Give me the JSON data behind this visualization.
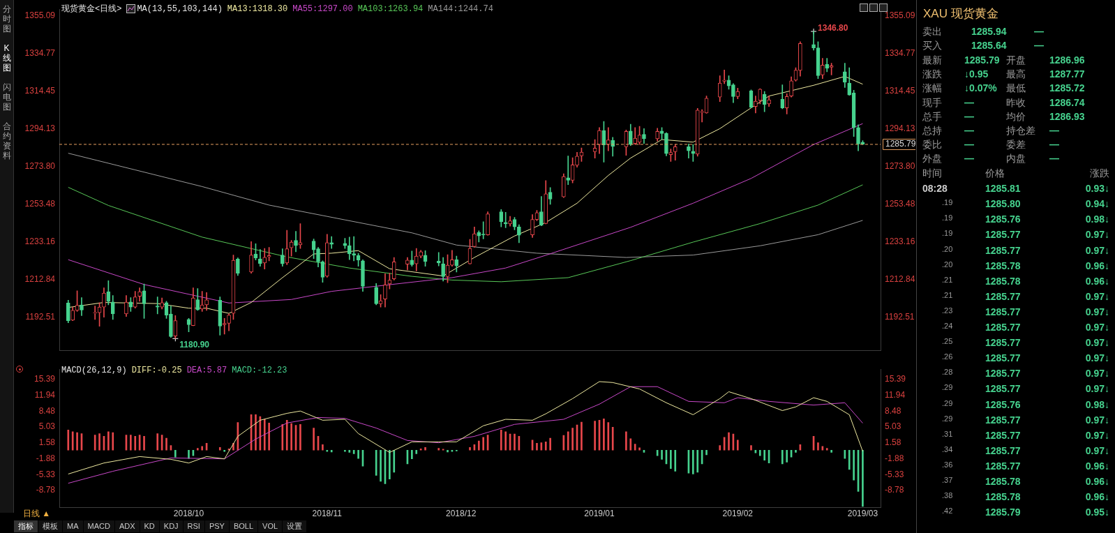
{
  "chart_data": [
    {
      "type": "candlestick",
      "title": "现货黄金<日线>",
      "legend_title": "MA(13,55,103,144)",
      "legend": "top",
      "tick_labels": "y",
      "x": [
        "2018-09-04",
        "2018-09-05",
        "2018-09-06",
        "2018-09-07",
        "2018-09-10",
        "2018-09-11",
        "2018-09-12",
        "2018-09-13",
        "2018-09-14",
        "2018-09-17",
        "2018-09-18",
        "2018-09-19",
        "2018-09-20",
        "2018-09-21",
        "2018-09-24",
        "2018-09-25",
        "2018-09-26",
        "2018-09-27",
        "2018-09-28",
        "2018-10-01",
        "2018-10-02",
        "2018-10-03",
        "2018-10-04",
        "2018-10-05",
        "2018-10-08",
        "2018-10-09",
        "2018-10-10",
        "2018-10-11",
        "2018-10-12",
        "2018-10-15",
        "2018-10-16",
        "2018-10-17",
        "2018-10-18",
        "2018-10-19",
        "2018-10-22",
        "2018-10-23",
        "2018-10-24",
        "2018-10-25",
        "2018-10-26",
        "2018-10-29",
        "2018-10-30",
        "2018-10-31",
        "2018-11-01",
        "2018-11-02",
        "2018-11-05",
        "2018-11-06",
        "2018-11-07",
        "2018-11-08",
        "2018-11-09",
        "2018-11-12",
        "2018-11-13",
        "2018-11-14",
        "2018-11-15",
        "2018-11-16",
        "2018-11-19",
        "2018-11-20",
        "2018-11-21",
        "2018-11-22",
        "2018-11-23",
        "2018-11-26",
        "2018-11-27",
        "2018-11-28",
        "2018-11-29",
        "2018-11-30",
        "2018-12-03",
        "2018-12-04",
        "2018-12-05",
        "2018-12-06",
        "2018-12-07",
        "2018-12-10",
        "2018-12-11",
        "2018-12-12",
        "2018-12-13",
        "2018-12-14",
        "2018-12-17",
        "2018-12-18",
        "2018-12-19",
        "2018-12-20",
        "2018-12-21",
        "2018-12-24",
        "2018-12-25",
        "2018-12-26",
        "2018-12-27",
        "2018-12-28",
        "2018-12-31",
        "2019-01-01",
        "2019-01-02",
        "2019-01-03",
        "2019-01-04",
        "2019-01-07",
        "2019-01-08",
        "2019-01-09",
        "2019-01-10",
        "2019-01-11",
        "2019-01-14",
        "2019-01-15",
        "2019-01-16",
        "2019-01-17",
        "2019-01-18",
        "2019-01-21",
        "2019-01-22",
        "2019-01-23",
        "2019-01-24",
        "2019-01-25",
        "2019-01-28",
        "2019-01-29",
        "2019-01-30",
        "2019-01-31",
        "2019-02-01",
        "2019-02-04",
        "2019-02-05",
        "2019-02-06",
        "2019-02-07",
        "2019-02-08",
        "2019-02-11",
        "2019-02-12",
        "2019-02-13",
        "2019-02-14",
        "2019-02-15",
        "2019-02-18",
        "2019-02-19",
        "2019-02-20",
        "2019-02-21",
        "2019-02-22",
        "2019-02-25",
        "2019-02-26",
        "2019-02-27",
        "2019-02-28",
        "2019-03-01"
      ],
      "ohlc": [
        [
          1200.1,
          1201.6,
          1189.4,
          1190.6
        ],
        [
          1190.8,
          1197.9,
          1190.6,
          1196.1
        ],
        [
          1196.1,
          1206.7,
          1195.5,
          1198.9
        ],
        [
          1199.1,
          1203.0,
          1193.3,
          1196.3
        ],
        [
          1194.6,
          1198.5,
          1191.2,
          1194.9
        ],
        [
          1194.9,
          1200.3,
          1187.5,
          1197.9
        ],
        [
          1197.9,
          1208.3,
          1192.4,
          1205.5
        ],
        [
          1206.2,
          1212.2,
          1199.1,
          1201.0
        ],
        [
          1200.7,
          1204.2,
          1191.2,
          1194.2
        ],
        [
          1194.2,
          1204.2,
          1192.8,
          1200.6
        ],
        [
          1200.7,
          1203.0,
          1195.5,
          1197.9
        ],
        [
          1197.9,
          1206.4,
          1197.3,
          1203.4
        ],
        [
          1203.7,
          1208.3,
          1201.0,
          1206.2
        ],
        [
          1206.7,
          1210.4,
          1191.8,
          1199.7
        ],
        [
          1198.5,
          1203.4,
          1194.2,
          1197.9
        ],
        [
          1197.9,
          1202.8,
          1196.9,
          1200.3
        ],
        [
          1200.3,
          1201.0,
          1191.8,
          1193.6
        ],
        [
          1194.2,
          1198.5,
          1181.5,
          1182.0
        ],
        [
          1182.3,
          1193.3,
          1180.9,
          1190.6
        ],
        [
          1191.2,
          1191.8,
          1184.5,
          1188.4
        ],
        [
          1187.9,
          1208.3,
          1187.8,
          1202.8
        ],
        [
          1201.9,
          1207.9,
          1196.1,
          1196.4
        ],
        [
          1196.9,
          1206.4,
          1195.5,
          1199.1
        ],
        [
          1199.1,
          1205.8,
          1196.1,
          1201.8
        ],
        [
          1201.6,
          1203.4,
          1182.7,
          1187.6
        ],
        [
          1188.4,
          1191.8,
          1183.3,
          1189.1
        ],
        [
          1189.1,
          1194.3,
          1185.1,
          1193.6
        ],
        [
          1194.5,
          1226.0,
          1191.2,
          1223.2
        ],
        [
          1223.8,
          1224.5,
          1215.0,
          1216.2
        ],
        [
          1216.8,
          1233.3,
          1216.2,
          1226.0
        ],
        [
          1226.6,
          1232.1,
          1223.3,
          1224.4
        ],
        [
          1223.9,
          1229.0,
          1219.9,
          1221.5
        ],
        [
          1221.7,
          1229.6,
          1218.4,
          1224.8
        ],
        [
          1225.0,
          1230.2,
          1222.9,
          1225.7
        ],
        [
          1226.0,
          1229.4,
          1219.9,
          1221.3
        ],
        [
          1221.7,
          1239.4,
          1220.8,
          1229.4
        ],
        [
          1229.9,
          1233.9,
          1225.4,
          1233.0
        ],
        [
          1233.9,
          1238.8,
          1227.8,
          1231.2
        ],
        [
          1231.5,
          1243.0,
          1229.6,
          1232.7
        ],
        [
          1233.5,
          1234.7,
          1224.1,
          1228.8
        ],
        [
          1229.4,
          1230.2,
          1219.6,
          1222.3
        ],
        [
          1222.3,
          1222.9,
          1211.3,
          1214.0
        ],
        [
          1214.6,
          1237.2,
          1214.0,
          1232.7
        ],
        [
          1232.7,
          1236.0,
          1229.6,
          1231.8
        ],
        [
          1232.3,
          1235.1,
          1229.6,
          1231.1
        ],
        [
          1231.1,
          1235.7,
          1223.5,
          1226.6
        ],
        [
          1226.8,
          1236.0,
          1222.9,
          1225.9
        ],
        [
          1225.7,
          1226.9,
          1219.9,
          1223.3
        ],
        [
          1222.9,
          1223.5,
          1206.4,
          1209.1
        ],
        [
          1208.6,
          1210.7,
          1199.1,
          1199.7
        ],
        [
          1199.7,
          1204.6,
          1197.9,
          1201.3
        ],
        [
          1202.2,
          1215.9,
          1197.9,
          1209.9
        ],
        [
          1210.4,
          1216.2,
          1207.7,
          1212.4
        ],
        [
          1213.2,
          1224.7,
          1212.5,
          1222.3
        ],
        [
          1221.1,
          1224.7,
          1218.0,
          1223.3
        ],
        [
          1223.3,
          1228.2,
          1219.9,
          1220.8
        ],
        [
          1221.3,
          1229.6,
          1217.4,
          1225.4
        ],
        [
          1225.4,
          1228.6,
          1224.5,
          1227.8
        ],
        [
          1225.9,
          1228.4,
          1219.9,
          1222.5
        ],
        [
          1222.7,
          1227.4,
          1220.1,
          1221.7
        ],
        [
          1221.3,
          1224.7,
          1211.9,
          1214.4
        ],
        [
          1214.4,
          1226.2,
          1211.1,
          1220.5
        ],
        [
          1220.5,
          1228.6,
          1219.9,
          1223.5
        ],
        [
          1223.5,
          1225.4,
          1216.8,
          1220.1
        ],
        [
          1221.3,
          1234.5,
          1221.1,
          1229.6
        ],
        [
          1230.6,
          1241.2,
          1230.2,
          1237.5
        ],
        [
          1238.2,
          1239.1,
          1233.0,
          1236.3
        ],
        [
          1237.3,
          1244.0,
          1234.7,
          1236.9
        ],
        [
          1236.9,
          1249.4,
          1236.7,
          1248.2
        ],
        [
          1249.4,
          1250.6,
          1241.2,
          1244.0
        ],
        [
          1243.6,
          1249.1,
          1240.8,
          1242.8
        ],
        [
          1242.8,
          1246.9,
          1241.6,
          1244.5
        ],
        [
          1245.2,
          1246.4,
          1239.6,
          1241.2
        ],
        [
          1241.2,
          1242.4,
          1232.7,
          1236.7
        ],
        [
          1236.9,
          1247.9,
          1235.5,
          1245.2
        ],
        [
          1245.2,
          1250.1,
          1244.5,
          1248.9
        ],
        [
          1249.4,
          1257.7,
          1241.8,
          1242.1
        ],
        [
          1243.0,
          1266.2,
          1242.8,
          1259.1
        ],
        [
          1259.9,
          1262.5,
          1253.4,
          1256.2
        ],
        [
          1257.4,
          1269.9,
          1257.1,
          1268.4
        ],
        [
          1267.7,
          1279.5,
          1264.0,
          1266.4
        ],
        [
          1266.4,
          1278.6,
          1265.0,
          1274.7
        ],
        [
          1274.5,
          1281.5,
          1273.5,
          1279.4
        ],
        [
          1279.6,
          1283.9,
          1276.6,
          1281.6
        ],
        [
          1281.8,
          1288.4,
          1278.4,
          1283.8
        ],
        [
          1285.7,
          1294.9,
          1280.8,
          1293.3
        ],
        [
          1293.3,
          1298.2,
          1276.2,
          1285.5
        ],
        [
          1285.7,
          1294.9,
          1282.3,
          1288.2
        ],
        [
          1287.9,
          1289.6,
          1279.4,
          1284.7
        ],
        [
          1284.5,
          1293.6,
          1279.9,
          1292.8
        ],
        [
          1293.0,
          1296.7,
          1285.1,
          1285.7
        ],
        [
          1286.3,
          1294.9,
          1285.7,
          1289.1
        ],
        [
          1286.9,
          1295.5,
          1285.7,
          1290.8
        ],
        [
          1291.2,
          1294.3,
          1286.3,
          1288.8
        ],
        [
          1288.8,
          1294.5,
          1287.6,
          1292.8
        ],
        [
          1293.0,
          1294.9,
          1288.4,
          1291.6
        ],
        [
          1291.8,
          1292.1,
          1279.6,
          1280.8
        ],
        [
          1280.2,
          1283.3,
          1276.6,
          1281.4
        ],
        [
          1281.8,
          1285.7,
          1277.2,
          1284.5
        ],
        [
          1284.5,
          1286.0,
          1278.4,
          1282.3
        ],
        [
          1282.1,
          1285.7,
          1276.6,
          1280.8
        ],
        [
          1280.5,
          1305.2,
          1279.4,
          1304.3
        ],
        [
          1303.0,
          1304.6,
          1297.9,
          1303.5
        ],
        [
          1302.8,
          1311.9,
          1302.6,
          1310.7
        ],
        [
          1311.3,
          1322.9,
          1308.9,
          1318.9
        ],
        [
          1319.9,
          1326.0,
          1318.6,
          1320.5
        ],
        [
          1320.5,
          1322.9,
          1315.6,
          1317.4
        ],
        [
          1318.0,
          1318.6,
          1308.3,
          1311.6
        ],
        [
          1311.6,
          1316.2,
          1310.4,
          1314.4
        ],
        [
          1314.8,
          1315.2,
          1305.5,
          1305.8
        ],
        [
          1306.2,
          1311.9,
          1302.8,
          1309.1
        ],
        [
          1309.5,
          1315.9,
          1307.7,
          1315.6
        ],
        [
          1312.8,
          1314.4,
          1303.4,
          1307.4
        ],
        [
          1307.7,
          1311.9,
          1306.2,
          1309.9
        ],
        [
          1310.1,
          1318.0,
          1305.0,
          1305.5
        ],
        [
          1305.5,
          1313.2,
          1302.2,
          1311.6
        ],
        [
          1311.9,
          1322.3,
          1311.3,
          1320.1
        ],
        [
          1320.5,
          1327.2,
          1319.9,
          1325.9
        ],
        [
          1325.7,
          1341.2,
          1322.6,
          1340.3
        ],
        [
          1339.7,
          1346.8,
          1336.7,
          1337.9
        ],
        [
          1337.9,
          1341.2,
          1321.3,
          1322.9
        ],
        [
          1323.3,
          1332.3,
          1321.3,
          1328.6
        ],
        [
          1329.0,
          1332.3,
          1325.0,
          1326.9
        ],
        [
          1327.4,
          1329.6,
          1323.3,
          1328.2
        ],
        [
          1325.0,
          1329.6,
          1316.5,
          1319.3
        ],
        [
          1318.9,
          1327.2,
          1312.3,
          1312.5
        ],
        [
          1313.5,
          1315.0,
          1290.0,
          1294.9
        ],
        [
          1294.9,
          1296.4,
          1282.3,
          1286.0
        ],
        [
          1286.96,
          1287.77,
          1285.72,
          1285.79
        ]
      ],
      "series": [
        {
          "name": "MA13:1318.30",
          "type": "line",
          "color": "#eee9a0",
          "x": [
            "2018-09-04",
            "2018-09-12",
            "2018-09-24",
            "2018-10-01",
            "2018-10-05",
            "2018-10-10",
            "2018-10-15",
            "2018-10-22",
            "2018-10-29",
            "2018-11-02",
            "2018-11-08",
            "2018-11-15",
            "2018-11-27",
            "2018-12-04",
            "2018-12-13",
            "2018-12-20",
            "2018-12-27",
            "2019-01-03",
            "2019-01-08",
            "2019-01-15",
            "2019-01-22",
            "2019-01-28",
            "2019-02-08",
            "2019-02-18",
            "2019-02-25",
            "2019-03-01"
          ],
          "values": [
            1197.7,
            1200.4,
            1199.8,
            1197.3,
            1197.3,
            1194.5,
            1200.4,
            1213.8,
            1226.6,
            1227.0,
            1228.4,
            1218.6,
            1214.7,
            1224.7,
            1236.3,
            1243.6,
            1254.0,
            1269.0,
            1278.4,
            1288.4,
            1287.0,
            1294.3,
            1311.9,
            1317.7,
            1322.5,
            1318.3
          ]
        },
        {
          "name": "MA55:1297.00",
          "type": "line",
          "color": "#c848c8",
          "x": [
            "2018-09-04",
            "2018-09-21",
            "2018-10-10",
            "2018-10-24",
            "2018-11-02",
            "2018-11-15",
            "2018-11-29",
            "2018-12-11",
            "2018-12-20",
            "2019-01-08",
            "2019-01-22",
            "2019-02-04",
            "2019-02-18",
            "2019-03-01"
          ],
          "values": [
            1223.5,
            1210.1,
            1200.1,
            1202.0,
            1206.4,
            1210.0,
            1213.8,
            1219.0,
            1225.9,
            1241.0,
            1254.0,
            1267.4,
            1285.7,
            1297.0
          ]
        },
        {
          "name": "MA103:1263.94",
          "type": "line",
          "color": "#58c858",
          "x": [
            "2018-09-04",
            "2018-09-13",
            "2018-10-04",
            "2018-10-23",
            "2018-11-06",
            "2018-11-20",
            "2018-11-29",
            "2018-12-10",
            "2018-12-25",
            "2019-01-08",
            "2019-01-22",
            "2019-02-06",
            "2019-02-19",
            "2019-03-01"
          ],
          "values": [
            1262.6,
            1252.8,
            1235.7,
            1225.0,
            1219.0,
            1214.5,
            1212.5,
            1211.6,
            1213.8,
            1223.0,
            1233.0,
            1243.0,
            1253.0,
            1263.94
          ]
        },
        {
          "name": "MA144:1244.74",
          "type": "line",
          "color": "#9a9a9a",
          "x": [
            "2018-09-04",
            "2018-09-19",
            "2018-10-04",
            "2018-10-19",
            "2018-11-05",
            "2018-11-20",
            "2018-11-30",
            "2018-12-18",
            "2019-01-07",
            "2019-01-22",
            "2019-02-06",
            "2019-02-19",
            "2019-03-01"
          ],
          "values": [
            1281.0,
            1272.0,
            1263.0,
            1253.0,
            1245.0,
            1238.0,
            1231.4,
            1227.0,
            1224.7,
            1226.0,
            1231.0,
            1237.0,
            1244.74
          ]
        }
      ],
      "xlim": [
        "2018-09-02",
        "2019-03-05"
      ],
      "ylim": [
        1174.3,
        1358.8
      ],
      "yticks": [
        1355.09,
        1334.77,
        1314.45,
        1294.13,
        {
          "value": 1273.8,
          "label": "1273.80"
        },
        1253.48,
        1233.16,
        1212.84,
        1192.51
      ],
      "y2lim": [
        1174.3,
        1358.8
      ],
      "y2ticks": [
        1355.09,
        1334.77,
        1314.45,
        1294.13,
        {
          "value": 1273.8,
          "label": "1273.80"
        },
        1253.48,
        1233.16,
        1212.84,
        1192.51
      ],
      "ref_lines": [
        {
          "axis": "y",
          "value": 1285.79,
          "label": "1285.79",
          "color": "#e8a060",
          "line_style": "dashed"
        }
      ],
      "annotations": [
        {
          "text": "1346.80",
          "x": "2019-02-18",
          "y": 1346.8
        },
        {
          "text": "1180.90",
          "x": "2018-09-28",
          "y": 1180.9
        }
      ]
    },
    {
      "type": "bar",
      "title": "MACD(26,12,9)",
      "legend": "top",
      "x": [
        "2018-09-04",
        "2018-09-05",
        "2018-09-06",
        "2018-09-07",
        "2018-09-10",
        "2018-09-11",
        "2018-09-12",
        "2018-09-13",
        "2018-09-14",
        "2018-09-17",
        "2018-09-18",
        "2018-09-19",
        "2018-09-20",
        "2018-09-21",
        "2018-09-24",
        "2018-09-25",
        "2018-09-26",
        "2018-09-27",
        "2018-09-28",
        "2018-10-01",
        "2018-10-02",
        "2018-10-03",
        "2018-10-04",
        "2018-10-05",
        "2018-10-08",
        "2018-10-09",
        "2018-10-10",
        "2018-10-11",
        "2018-10-12",
        "2018-10-15",
        "2018-10-16",
        "2018-10-17",
        "2018-10-18",
        "2018-10-19",
        "2018-10-22",
        "2018-10-23",
        "2018-10-24",
        "2018-10-25",
        "2018-10-26",
        "2018-10-29",
        "2018-10-30",
        "2018-10-31",
        "2018-11-01",
        "2018-11-02",
        "2018-11-05",
        "2018-11-06",
        "2018-11-07",
        "2018-11-08",
        "2018-11-09",
        "2018-11-12",
        "2018-11-13",
        "2018-11-14",
        "2018-11-15",
        "2018-11-16",
        "2018-11-19",
        "2018-11-20",
        "2018-11-21",
        "2018-11-22",
        "2018-11-23",
        "2018-11-26",
        "2018-11-27",
        "2018-11-28",
        "2018-11-29",
        "2018-11-30",
        "2018-12-03",
        "2018-12-04",
        "2018-12-05",
        "2018-12-06",
        "2018-12-07",
        "2018-12-10",
        "2018-12-11",
        "2018-12-12",
        "2018-12-13",
        "2018-12-14",
        "2018-12-17",
        "2018-12-18",
        "2018-12-19",
        "2018-12-20",
        "2018-12-21",
        "2018-12-24",
        "2018-12-25",
        "2018-12-26",
        "2018-12-27",
        "2018-12-28",
        "2018-12-31",
        "2019-01-01",
        "2019-01-02",
        "2019-01-03",
        "2019-01-04",
        "2019-01-07",
        "2019-01-08",
        "2019-01-09",
        "2019-01-10",
        "2019-01-11",
        "2019-01-14",
        "2019-01-15",
        "2019-01-16",
        "2019-01-17",
        "2019-01-18",
        "2019-01-21",
        "2019-01-22",
        "2019-01-23",
        "2019-01-24",
        "2019-01-25",
        "2019-01-28",
        "2019-01-29",
        "2019-01-30",
        "2019-01-31",
        "2019-02-01",
        "2019-02-04",
        "2019-02-05",
        "2019-02-06",
        "2019-02-07",
        "2019-02-08",
        "2019-02-11",
        "2019-02-12",
        "2019-02-13",
        "2019-02-14",
        "2019-02-15",
        "2019-02-18",
        "2019-02-19",
        "2019-02-20",
        "2019-02-21",
        "2019-02-22",
        "2019-02-25",
        "2019-02-26",
        "2019-02-27",
        "2019-02-28",
        "2019-03-01"
      ],
      "series": [
        {
          "name": "DIFF:-0.25",
          "type": "line",
          "color": "#eee9a0",
          "x": [
            "2018-09-04",
            "2018-09-12",
            "2018-09-20",
            "2018-09-27",
            "2018-10-01",
            "2018-10-05",
            "2018-10-09",
            "2018-10-12",
            "2018-10-17",
            "2018-10-23",
            "2018-10-26",
            "2018-10-31",
            "2018-11-05",
            "2018-11-08",
            "2018-11-15",
            "2018-11-20",
            "2018-11-26",
            "2018-11-30",
            "2018-12-06",
            "2018-12-11",
            "2018-12-17",
            "2018-12-20",
            "2018-12-26",
            "2019-01-01",
            "2019-01-04",
            "2019-01-10",
            "2019-01-16",
            "2019-01-22",
            "2019-01-28",
            "2019-01-30",
            "2019-02-04",
            "2019-02-11",
            "2019-02-14",
            "2019-02-18",
            "2019-02-21",
            "2019-02-26",
            "2019-03-01"
          ],
          "values": [
            -5.2,
            -2.8,
            -1.4,
            -2.0,
            -2.8,
            -1.4,
            -1.9,
            3.0,
            6.5,
            8.0,
            8.5,
            6.5,
            6.7,
            3.6,
            -0.5,
            1.8,
            1.8,
            1.8,
            5.3,
            6.7,
            6.5,
            7.9,
            11.2,
            14.9,
            14.7,
            13.3,
            10.3,
            7.7,
            11.2,
            12.7,
            11.2,
            8.6,
            9.4,
            11.4,
            10.6,
            7.7,
            -0.25
          ]
        },
        {
          "name": "DEA:5.87",
          "type": "line",
          "color": "#c848c8",
          "x": [
            "2018-09-04",
            "2018-09-14",
            "2018-09-27",
            "2018-10-09",
            "2018-10-16",
            "2018-10-23",
            "2018-10-30",
            "2018-11-05",
            "2018-11-12",
            "2018-11-19",
            "2018-11-26",
            "2018-12-04",
            "2018-12-13",
            "2018-12-24",
            "2019-01-01",
            "2019-01-08",
            "2019-01-14",
            "2019-01-21",
            "2019-01-29",
            "2019-02-01",
            "2019-02-08",
            "2019-02-18",
            "2019-02-25",
            "2019-03-01"
          ],
          "values": [
            -7.2,
            -4.6,
            -1.7,
            -1.9,
            2.4,
            5.9,
            7.1,
            6.9,
            4.8,
            2.1,
            1.6,
            3.0,
            5.6,
            6.7,
            10.0,
            13.8,
            13.8,
            10.6,
            10.3,
            11.4,
            10.6,
            9.8,
            10.3,
            5.87
          ]
        },
        {
          "name": "MACD:-12.23",
          "type": "bar",
          "colors": [
            "#e8474b",
            "#e8474b",
            "#e8474b",
            "#e8474b",
            "#e8474b",
            "#e8474b",
            "#e8474b",
            "#e8474b",
            "#e8474b",
            "#e8474b",
            "#e8474b",
            "#e8474b",
            "#e8474b",
            "#e8474b",
            "#e8474b",
            "#e8474b",
            "#e8474b",
            "#e8474b",
            "#46d28e",
            "#46d28e",
            "#46d28e",
            "#e8474b",
            "#e8474b",
            "#e8474b",
            "#e8474b",
            "#46d28e",
            "#e8474b",
            "#e8474b",
            "#e8474b",
            "#e8474b",
            "#e8474b",
            "#e8474b",
            "#e8474b",
            "#e8474b",
            "#e8474b",
            "#e8474b",
            "#e8474b",
            "#e8474b",
            "#e8474b",
            "#e8474b",
            "#e8474b",
            "#e8474b",
            "#46d28e",
            "#46d28e",
            "#46d28e",
            "#46d28e",
            "#46d28e",
            "#46d28e",
            "#46d28e",
            "#46d28e",
            "#46d28e",
            "#46d28e",
            "#46d28e",
            "#46d28e",
            "#46d28e",
            "#46d28e",
            "#46d28e",
            "#e8474b",
            "#e8474b",
            "#e8474b",
            "#e8474b",
            "#46d28e",
            "#46d28e",
            "#46d28e",
            "#e8474b",
            "#e8474b",
            "#e8474b",
            "#e8474b",
            "#e8474b",
            "#e8474b",
            "#e8474b",
            "#e8474b",
            "#e8474b",
            "#e8474b",
            "#e8474b",
            "#e8474b",
            "#e8474b",
            "#e8474b",
            "#e8474b",
            "#e8474b",
            "#e8474b",
            "#e8474b",
            "#e8474b",
            "#e8474b",
            "#e8474b",
            "#e8474b",
            "#e8474b",
            "#e8474b",
            "#e8474b",
            "#e8474b",
            "#e8474b",
            "#e8474b",
            "#e8474b",
            "#46d28e",
            "#46d28e",
            "#46d28e",
            "#46d28e",
            "#46d28e",
            "#46d28e",
            "#46d28e",
            "#46d28e",
            "#46d28e",
            "#46d28e",
            "#46d28e",
            "#e8474b",
            "#e8474b",
            "#e8474b",
            "#e8474b",
            "#e8474b",
            "#e8474b",
            "#46d28e",
            "#46d28e",
            "#46d28e",
            "#46d28e",
            "#46d28e",
            "#46d28e",
            "#46d28e",
            "#46d28e",
            "#e8474b",
            "#e8474b",
            "#e8474b",
            "#e8474b",
            "#e8474b",
            "#46d28e",
            "#46d28e",
            "#46d28e",
            "#46d28e",
            "#46d28e",
            "#46d28e"
          ],
          "values": [
            4.4,
            4.0,
            3.8,
            3.6,
            3.3,
            3.6,
            3.0,
            4.0,
            3.8,
            3.3,
            3.3,
            3.0,
            3.3,
            3.0,
            3.6,
            3.3,
            2.6,
            1.0,
            -1.5,
            -1.8,
            -1.2,
            0.4,
            0.8,
            1.5,
            0.6,
            -0.3,
            0.3,
            1.5,
            6.0,
            7.7,
            7.7,
            7.3,
            6.7,
            5.9,
            5.6,
            6.5,
            5.8,
            5.4,
            5.6,
            4.8,
            3.0,
            1.2,
            -0.3,
            -0.4,
            -0.3,
            -0.5,
            -0.8,
            -1.8,
            -3.5,
            -5.5,
            -6.8,
            -7.3,
            -6.3,
            -4.8,
            -3.0,
            -1.9,
            -0.8,
            0.3,
            0.6,
            0.4,
            0.2,
            -0.4,
            -0.3,
            -0.2,
            0.6,
            1.2,
            2.0,
            2.8,
            3.3,
            4.4,
            4.0,
            3.5,
            3.5,
            3.0,
            2.2,
            1.5,
            1.6,
            1.8,
            2.6,
            3.2,
            4.0,
            4.8,
            5.5,
            6.1,
            6.3,
            6.5,
            6.8,
            6.0,
            5.0,
            4.0,
            2.5,
            1.3,
            0.5,
            -0.5,
            -1.2,
            -2.0,
            -3.0,
            -4.0,
            -4.6,
            -5.0,
            -5.2,
            -4.8,
            -3.0,
            -1.0,
            1.0,
            2.8,
            3.8,
            3.5,
            2.2,
            1.0,
            -0.6,
            -1.2,
            -2.2,
            -2.8,
            -3.0,
            -2.6,
            -1.5,
            -0.5,
            1.2,
            3.0,
            1.6,
            0.8,
            0.4,
            -0.5,
            -1.8,
            -4.2,
            -6.5,
            -9.0,
            -12.23
          ]
        }
      ],
      "xlim": [
        "2018-09-02",
        "2019-03-05"
      ],
      "xticks": [
        {
          "value": "2018-10",
          "label": "2018/10"
        },
        {
          "value": "2018-11",
          "label": "2018/11"
        },
        {
          "value": "2018-12",
          "label": "2018/12"
        },
        {
          "value": "2019-01",
          "label": "2019/01"
        },
        {
          "value": "2019-02",
          "label": "2019/02"
        },
        {
          "value": "2019-03",
          "label": "2019/03"
        }
      ],
      "ylim": [
        -12.5,
        17.6
      ],
      "yticks": [
        15.39,
        11.94,
        8.48,
        5.03,
        1.58,
        -1.88,
        -5.33,
        -8.78
      ],
      "y2lim": [
        -12.5,
        17.6
      ],
      "y2ticks": [
        15.39,
        11.94,
        8.48,
        5.03,
        1.58,
        -1.88,
        -5.33,
        -8.78
      ]
    },
    {
      "type": "other",
      "title": "XAU 现货黄金",
      "annotations": [
        "卖出",
        "1285.94",
        "—",
        "买入",
        "1285.64",
        "—"
      ]
    },
    {
      "type": "other",
      "annotations": [
        "最新",
        "1285.79",
        "开盘",
        "1286.96",
        "涨跌",
        "↓0.95",
        "最高",
        "1287.77",
        "涨幅",
        "↓0.07%",
        "最低",
        "1285.72",
        "现手",
        "—",
        "昨收",
        "1286.74",
        "总手",
        "—",
        "均价",
        "1286.93",
        "总持",
        "—",
        "持仓差",
        "—",
        "委比",
        "—",
        "委差",
        "—",
        "外盘",
        "—",
        "内盘",
        "—"
      ]
    },
    {
      "type": "other",
      "annotations": [
        "时间",
        "价格",
        "涨跌",
        "08:28",
        "1285.81",
        "0.93↓",
        ".19",
        "1285.80",
        "0.94↓",
        ".19",
        "1285.76",
        "0.98↓",
        ".19",
        "1285.77",
        "0.97↓",
        ".20",
        "1285.77",
        "0.97↓",
        ".20",
        "1285.78",
        "0.96↓",
        ".21",
        "1285.78",
        "0.96↓",
        ".21",
        "1285.77",
        "0.97↓",
        ".23",
        "1285.77",
        "0.97↓",
        ".24",
        "1285.77",
        "0.97↓",
        ".25",
        "1285.77",
        "0.97↓",
        ".26",
        "1285.77",
        "0.97↓",
        ".28",
        "1285.77",
        "0.97↓",
        ".29",
        "1285.77",
        "0.97↓",
        ".29",
        "1285.76",
        "0.98↓",
        ".29",
        "1285.77",
        "0.97↓",
        ".31",
        "1285.77",
        "0.97↓",
        ".34",
        "1285.77",
        "0.97↓",
        ".36",
        "1285.77",
        "0.96↓",
        ".37",
        "1285.78",
        "0.96↓",
        ".38",
        "1285.78",
        "0.96↓",
        ".42",
        "1285.79",
        "0.95↓"
      ]
    },
    {
      "type": "other",
      "annotations": [
        "分时图",
        "K线图",
        "闪电图",
        "合约资料"
      ]
    },
    {
      "type": "other",
      "annotations": [
        "日线 ▲",
        "指标",
        "模板",
        "MA",
        "MACD",
        "ADX",
        "KD",
        "KDJ",
        "RSI",
        "PSY",
        "BOLL",
        "VOL",
        "设置"
      ]
    }
  ]
}
